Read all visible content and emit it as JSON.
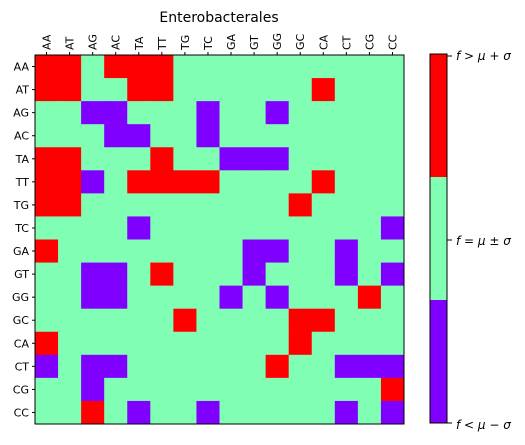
{
  "chart_data": {
    "type": "heatmap",
    "title": "Enterobacterales",
    "xlabel": "",
    "ylabel": "",
    "x_labels": [
      "AA",
      "AT",
      "AG",
      "AC",
      "TA",
      "TT",
      "TG",
      "TC",
      "GA",
      "GT",
      "GG",
      "GC",
      "CA",
      "CT",
      "CG",
      "CC"
    ],
    "y_labels": [
      "AA",
      "AT",
      "AG",
      "AC",
      "TA",
      "TT",
      "TG",
      "TC",
      "GA",
      "GT",
      "GG",
      "GC",
      "CA",
      "CT",
      "CG",
      "CC"
    ],
    "value_legend": {
      "-1": "below",
      "0": "within",
      "1": "above"
    },
    "colors": {
      "-1": "#8000ff",
      "0": "#80ffb4",
      "1": "#ff0000"
    },
    "matrix": [
      [
        1,
        1,
        0,
        1,
        1,
        1,
        0,
        0,
        0,
        0,
        0,
        0,
        0,
        0,
        0,
        0
      ],
      [
        1,
        1,
        0,
        0,
        1,
        1,
        0,
        0,
        0,
        0,
        0,
        0,
        1,
        0,
        0,
        0
      ],
      [
        0,
        0,
        -1,
        -1,
        0,
        0,
        0,
        -1,
        0,
        0,
        -1,
        0,
        0,
        0,
        0,
        0
      ],
      [
        0,
        0,
        0,
        -1,
        -1,
        0,
        0,
        -1,
        0,
        0,
        0,
        0,
        0,
        0,
        0,
        0
      ],
      [
        1,
        1,
        0,
        0,
        0,
        1,
        0,
        0,
        -1,
        -1,
        -1,
        0,
        0,
        0,
        0,
        0
      ],
      [
        1,
        1,
        -1,
        0,
        1,
        1,
        1,
        1,
        0,
        0,
        0,
        0,
        1,
        0,
        0,
        0
      ],
      [
        1,
        1,
        0,
        0,
        0,
        0,
        0,
        0,
        0,
        0,
        0,
        1,
        0,
        0,
        0,
        0
      ],
      [
        0,
        0,
        0,
        0,
        -1,
        0,
        0,
        0,
        0,
        0,
        0,
        0,
        0,
        0,
        0,
        -1
      ],
      [
        1,
        0,
        0,
        0,
        0,
        0,
        0,
        0,
        0,
        -1,
        -1,
        0,
        0,
        -1,
        0,
        0
      ],
      [
        0,
        0,
        -1,
        -1,
        0,
        1,
        0,
        0,
        0,
        -1,
        0,
        0,
        0,
        -1,
        0,
        -1
      ],
      [
        0,
        0,
        -1,
        -1,
        0,
        0,
        0,
        0,
        -1,
        0,
        -1,
        0,
        0,
        0,
        1,
        0
      ],
      [
        0,
        0,
        0,
        0,
        0,
        0,
        1,
        0,
        0,
        0,
        0,
        1,
        1,
        0,
        0,
        0
      ],
      [
        1,
        0,
        0,
        0,
        0,
        0,
        0,
        0,
        0,
        0,
        0,
        1,
        0,
        0,
        0,
        0
      ],
      [
        -1,
        0,
        -1,
        -1,
        0,
        0,
        0,
        0,
        0,
        0,
        1,
        0,
        0,
        -1,
        -1,
        -1
      ],
      [
        0,
        0,
        -1,
        0,
        0,
        0,
        0,
        0,
        0,
        0,
        0,
        0,
        0,
        0,
        0,
        1
      ],
      [
        0,
        0,
        1,
        0,
        -1,
        0,
        0,
        -1,
        0,
        0,
        0,
        0,
        0,
        -1,
        0,
        -1
      ]
    ],
    "colorbar": {
      "labels": [
        "f > μ + σ",
        "f = μ ± σ",
        "f < μ − σ"
      ]
    },
    "grid": false
  }
}
